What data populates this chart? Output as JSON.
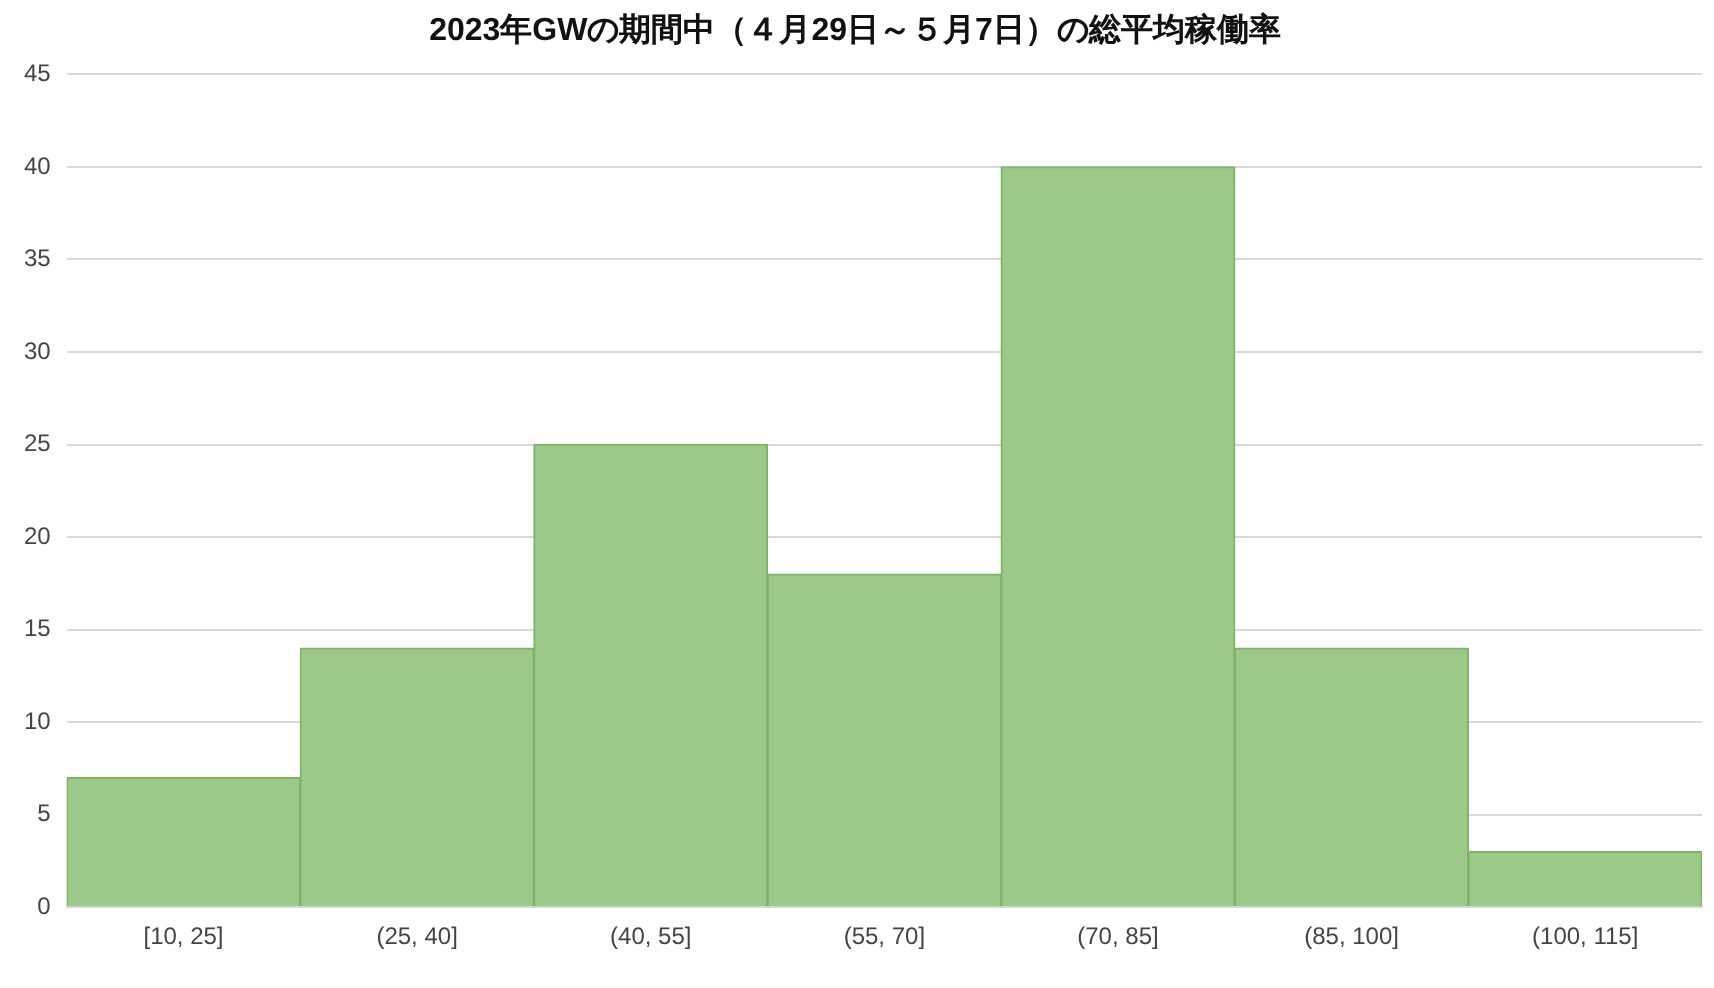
{
  "chart_data": {
    "type": "bar",
    "title": "2023年GWの期間中（４月29日～５月7日）の総平均稼働率",
    "categories": [
      "[10, 25]",
      "(25, 40]",
      "(40, 55]",
      "(55, 70]",
      "(70, 85]",
      "(85, 100]",
      "(100, 115]"
    ],
    "values": [
      7,
      14,
      25,
      18,
      40,
      14,
      3
    ],
    "color": "#9cc98a",
    "ylim": [
      0,
      45
    ],
    "yticks": [
      0,
      5,
      10,
      15,
      20,
      25,
      30,
      35,
      40,
      45
    ],
    "grid": "y"
  }
}
